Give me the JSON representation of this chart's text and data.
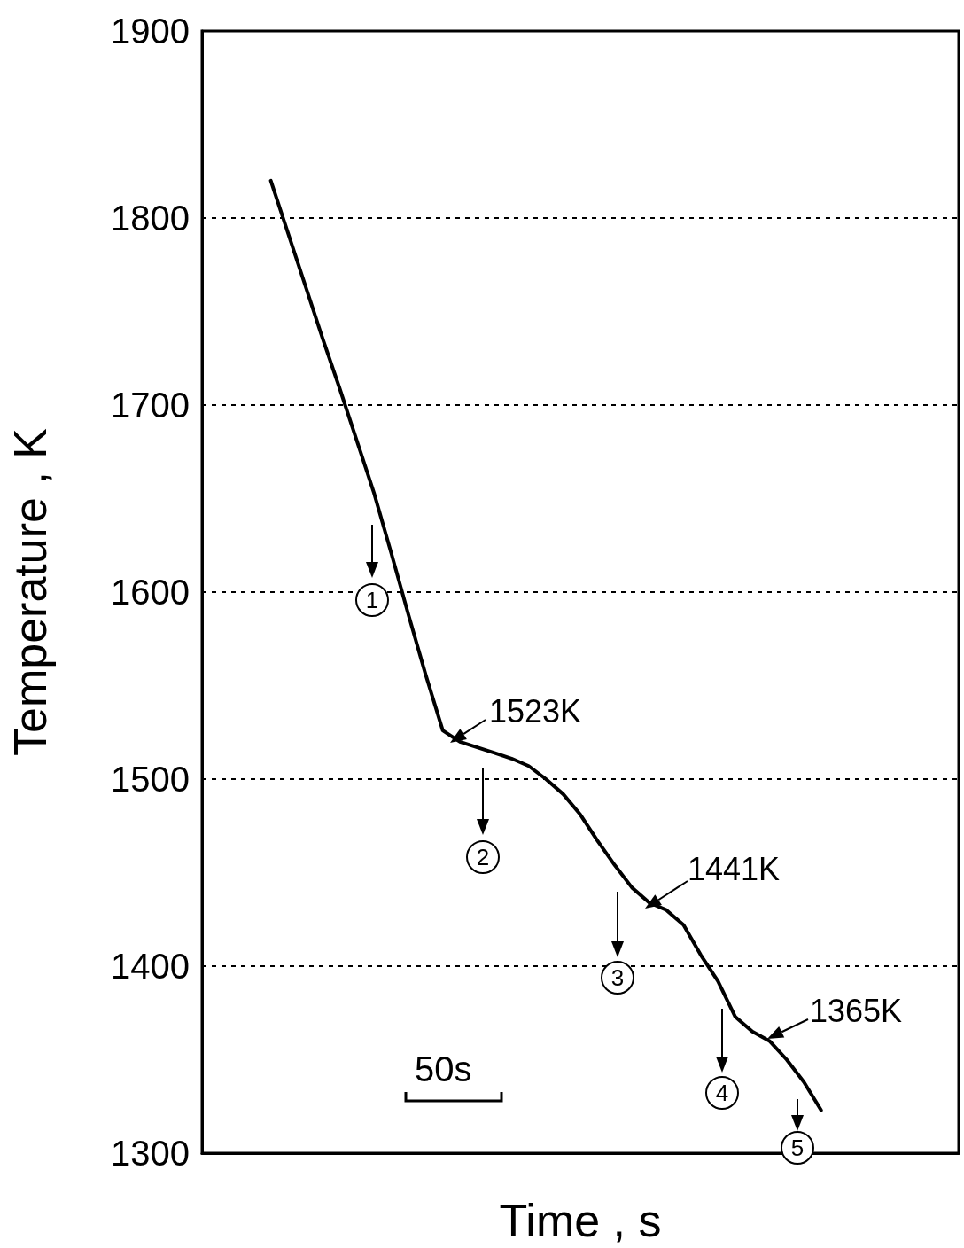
{
  "chart_data": {
    "type": "line",
    "xlabel": "Time , s",
    "ylabel": "Temperature , K",
    "categories": [
      null,
      null,
      null,
      null,
      null,
      null,
      null,
      null,
      null,
      null,
      null,
      null,
      null,
      null,
      null,
      null,
      null,
      null,
      null,
      null,
      null,
      null,
      null,
      null,
      null,
      null,
      null,
      null,
      null,
      null,
      null,
      null,
      null,
      null,
      null,
      null,
      null,
      null,
      null,
      null,
      null,
      null,
      null,
      null,
      null
    ],
    "values": [
      null,
      null,
      null,
      null,
      1820,
      1792,
      1764,
      1736,
      1709,
      1681,
      1653,
      1621,
      1588,
      1556,
      1526,
      1520,
      1517,
      1514,
      1511,
      1507,
      1500,
      1492,
      1481,
      1467,
      1454,
      1442,
      1434,
      1430,
      1422,
      1406,
      1392,
      1373,
      1365,
      1360,
      1350,
      1338,
      1323,
      null,
      null,
      null,
      null,
      null,
      null,
      null,
      null
    ],
    "color": "#000000",
    "ylim": [
      1300,
      1900
    ],
    "yticks": [
      1300,
      1400,
      1500,
      1600,
      1700,
      1800,
      1900
    ],
    "grid": "y",
    "tick_labels": "y",
    "marker": "none",
    "line_style": "solid",
    "annotations": [
      "1523K",
      "1441K",
      "1365K",
      "1",
      "2",
      "3",
      "4",
      "5",
      "50s"
    ]
  }
}
